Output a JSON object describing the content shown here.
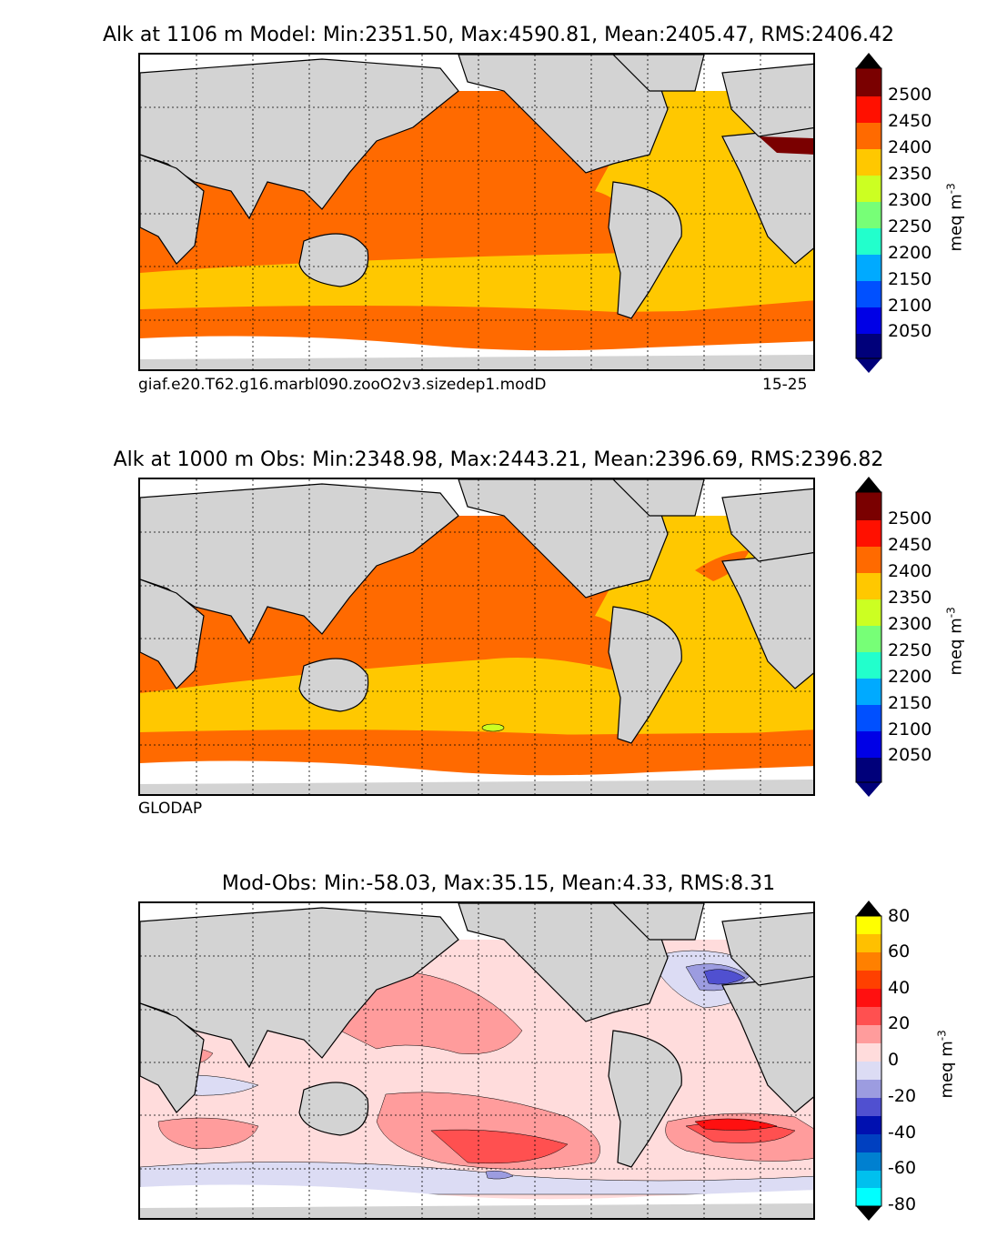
{
  "panels": [
    {
      "title": "Alk at 1106 m Model: Min:2351.50, Max:4590.81, Mean:2405.47, RMS:2406.42",
      "caption_left": "giaf.e20.T62.g16.marbl090.zooO2v3.sizedep1.modD",
      "caption_right": "15-25",
      "colorbar": {
        "unit": "meq m",
        "unit_exp": "-3",
        "ticks": [
          "2050",
          "2100",
          "2150",
          "2200",
          "2250",
          "2300",
          "2350",
          "2400",
          "2450",
          "2500"
        ],
        "colors": [
          "#00007a",
          "#0000e6",
          "#0050ff",
          "#00aaff",
          "#22ffcc",
          "#77ff77",
          "#ccff22",
          "#ffc800",
          "#ff6a00",
          "#ff1000",
          "#7a0000"
        ]
      }
    },
    {
      "title": "Alk at 1000 m Obs: Min:2348.98, Max:2443.21, Mean:2396.69, RMS:2396.82",
      "caption_left": "GLODAP",
      "caption_right": "",
      "colorbar": {
        "unit": "meq m",
        "unit_exp": "-3",
        "ticks": [
          "2050",
          "2100",
          "2150",
          "2200",
          "2250",
          "2300",
          "2350",
          "2400",
          "2450",
          "2500"
        ],
        "colors": [
          "#00007a",
          "#0000e6",
          "#0050ff",
          "#00aaff",
          "#22ffcc",
          "#77ff77",
          "#ccff22",
          "#ffc800",
          "#ff6a00",
          "#ff1000",
          "#7a0000"
        ]
      }
    },
    {
      "title": "Mod-Obs: Min:-58.03, Max:35.15, Mean:4.33, RMS:8.31",
      "caption_left": "",
      "caption_right": "",
      "colorbar": {
        "unit": "meq m",
        "unit_exp": "-3",
        "ticks": [
          "-80",
          "-60",
          "-40",
          "-20",
          "0",
          "20",
          "40",
          "60",
          "80"
        ],
        "colors": [
          "#00ffff",
          "#00c0ee",
          "#0080d0",
          "#0040c0",
          "#0010b0",
          "#5050d0",
          "#9c9ce0",
          "#dcdcf4",
          "#ffdcdc",
          "#ff9c9c",
          "#ff5050",
          "#ff1010",
          "#ff4000",
          "#ff8000",
          "#ffc000",
          "#ffff00"
        ]
      }
    }
  ],
  "colors": {
    "land": "#d3d3d3",
    "ice": "#ffffff",
    "pac_model": "#ff6a00",
    "atl_model": "#ffc800",
    "grid": "#000000"
  }
}
